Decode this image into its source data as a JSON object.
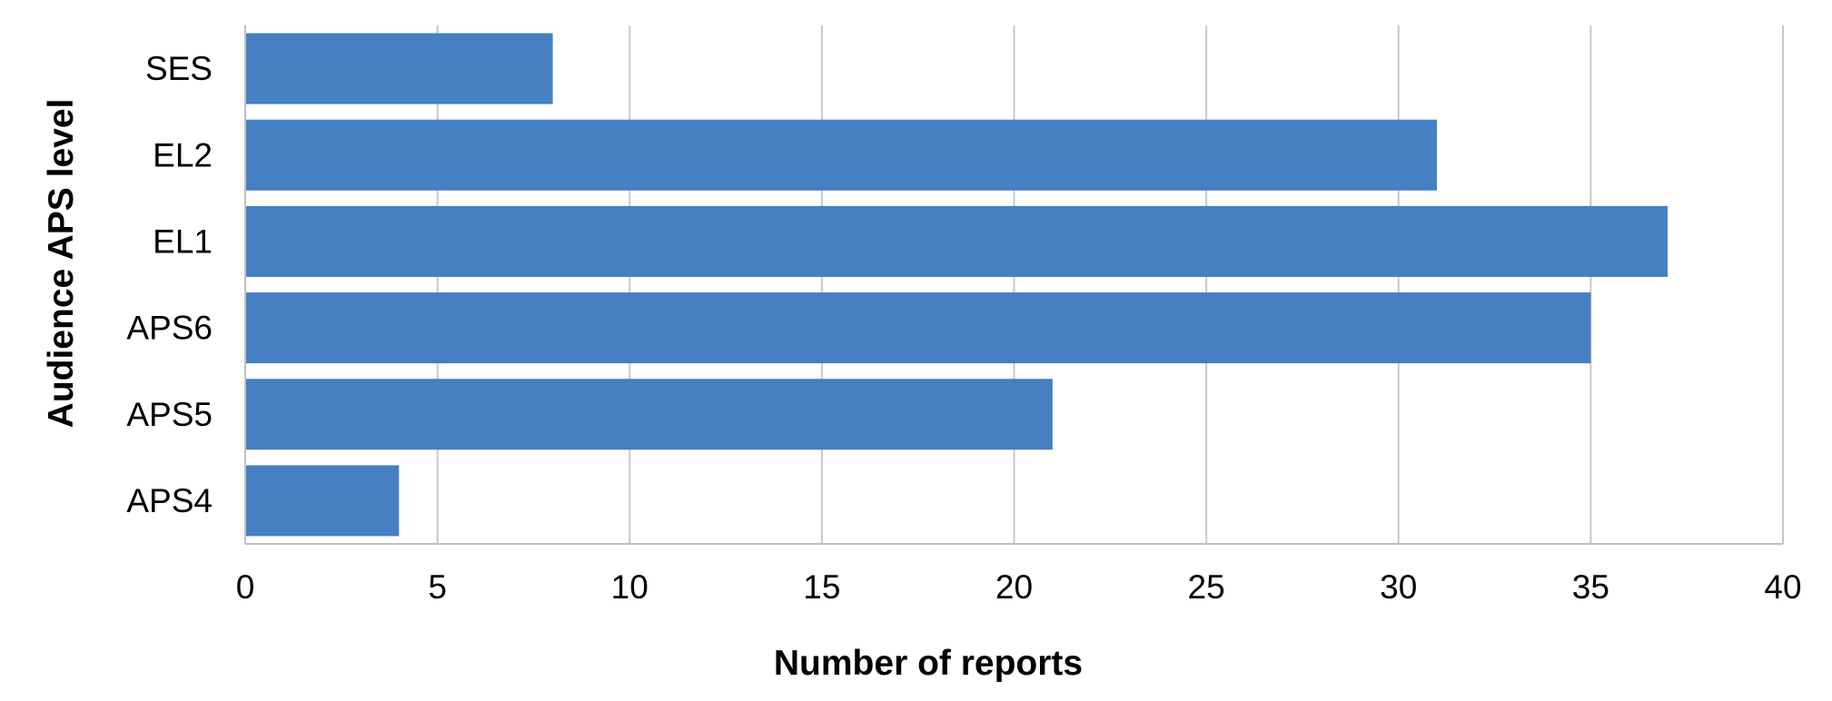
{
  "chart_data": {
    "type": "bar",
    "orientation": "horizontal",
    "title": "",
    "xlabel": "Number of reports",
    "ylabel": "Audience APS level",
    "categories": [
      "SES",
      "EL2",
      "EL1",
      "APS6",
      "APS5",
      "APS4"
    ],
    "values": [
      8,
      31,
      37,
      35,
      21,
      4
    ],
    "xlim": [
      0,
      40
    ],
    "xticks": [
      0,
      5,
      10,
      15,
      20,
      25,
      30,
      35,
      40
    ],
    "grid": "vertical",
    "legend": "none",
    "bar_color": "#4680C2",
    "grid_color": "#C8C8C8"
  }
}
